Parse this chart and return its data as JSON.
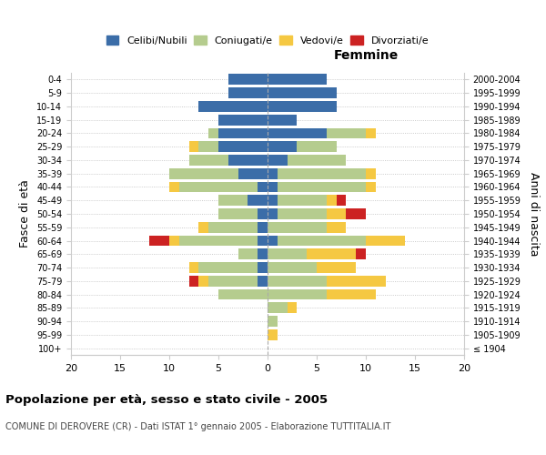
{
  "age_groups": [
    "100+",
    "95-99",
    "90-94",
    "85-89",
    "80-84",
    "75-79",
    "70-74",
    "65-69",
    "60-64",
    "55-59",
    "50-54",
    "45-49",
    "40-44",
    "35-39",
    "30-34",
    "25-29",
    "20-24",
    "15-19",
    "10-14",
    "5-9",
    "0-4"
  ],
  "birth_years": [
    "≤ 1904",
    "1905-1909",
    "1910-1914",
    "1915-1919",
    "1920-1924",
    "1925-1929",
    "1930-1934",
    "1935-1939",
    "1940-1944",
    "1945-1949",
    "1950-1954",
    "1955-1959",
    "1960-1964",
    "1965-1969",
    "1970-1974",
    "1975-1979",
    "1980-1984",
    "1985-1989",
    "1990-1994",
    "1995-1999",
    "2000-2004"
  ],
  "male": {
    "celibi": [
      0,
      0,
      0,
      0,
      0,
      1,
      1,
      1,
      1,
      1,
      1,
      2,
      1,
      3,
      4,
      5,
      5,
      5,
      7,
      4,
      4
    ],
    "coniugati": [
      0,
      0,
      0,
      0,
      5,
      5,
      6,
      2,
      8,
      5,
      4,
      3,
      8,
      7,
      4,
      2,
      1,
      0,
      0,
      0,
      0
    ],
    "vedovi": [
      0,
      0,
      0,
      0,
      0,
      1,
      1,
      0,
      1,
      1,
      0,
      0,
      1,
      0,
      0,
      1,
      0,
      0,
      0,
      0,
      0
    ],
    "divorziati": [
      0,
      0,
      0,
      0,
      0,
      1,
      0,
      0,
      2,
      0,
      0,
      0,
      0,
      0,
      0,
      0,
      0,
      0,
      0,
      0,
      0
    ]
  },
  "female": {
    "nubili": [
      0,
      0,
      0,
      0,
      0,
      0,
      0,
      0,
      1,
      0,
      1,
      1,
      1,
      1,
      2,
      3,
      6,
      3,
      7,
      7,
      6
    ],
    "coniugate": [
      0,
      0,
      1,
      2,
      6,
      6,
      5,
      4,
      9,
      6,
      5,
      5,
      9,
      9,
      6,
      4,
      4,
      0,
      0,
      0,
      0
    ],
    "vedove": [
      0,
      1,
      0,
      1,
      5,
      6,
      4,
      5,
      4,
      2,
      2,
      1,
      1,
      1,
      0,
      0,
      1,
      0,
      0,
      0,
      0
    ],
    "divorziate": [
      0,
      0,
      0,
      0,
      0,
      0,
      0,
      1,
      0,
      0,
      2,
      1,
      0,
      0,
      0,
      0,
      0,
      0,
      0,
      0,
      0
    ]
  },
  "colors": {
    "celibi_nubili": "#3b6da8",
    "coniugati": "#b5cc8e",
    "vedovi": "#f5c842",
    "divorziati": "#cc2222"
  },
  "xlim": 20,
  "title": "Popolazione per età, sesso e stato civile - 2005",
  "subtitle": "COMUNE DI DEROVERE (CR) - Dati ISTAT 1° gennaio 2005 - Elaborazione TUTTITALIA.IT",
  "ylabel_left": "Fasce di età",
  "ylabel_right": "Anni di nascita",
  "xlabel_right": "Femmine"
}
